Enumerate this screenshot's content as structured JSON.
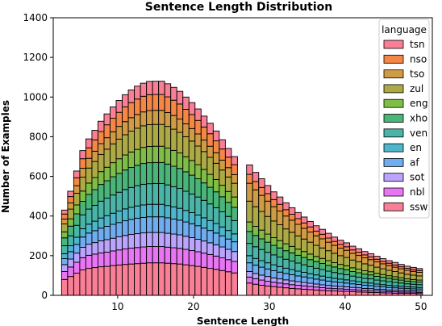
{
  "chart_data": {
    "type": "bar",
    "stacked": true,
    "title": "Sentence Length Distribution",
    "xlabel": "Sentence Length",
    "ylabel": "Number of Examples",
    "xlim": [
      1.5,
      51.5
    ],
    "ylim": [
      0,
      1400
    ],
    "xticks": [
      10,
      20,
      30,
      40,
      50
    ],
    "yticks": [
      0,
      200,
      400,
      600,
      800,
      1000,
      1200,
      1400
    ],
    "legend": {
      "title": "language",
      "placement": "top-right"
    },
    "x": [
      3,
      3.8,
      4.6,
      5.4,
      6.2,
      7.0,
      7.8,
      8.6,
      9.4,
      10.2,
      11.0,
      11.8,
      12.6,
      13.4,
      14.2,
      15.0,
      15.8,
      16.6,
      17.4,
      18.2,
      19.0,
      19.8,
      20.6,
      21.4,
      22.2,
      23.0,
      23.8,
      24.6,
      25.4,
      27.4,
      28.2,
      29.0,
      29.8,
      30.6,
      31.4,
      32.2,
      33.0,
      33.8,
      34.6,
      35.4,
      36.2,
      37.0,
      37.8,
      38.6,
      39.4,
      40.2,
      41.0,
      41.8,
      42.6,
      43.4,
      44.2,
      45.0,
      45.8,
      46.6,
      47.4,
      48.2,
      49.0,
      49.8
    ],
    "bin_width": 0.8,
    "series": [
      {
        "name": "ssw",
        "color": "#f77189",
        "values": [
          80,
          95,
          112,
          128,
          136,
          140,
          144,
          146,
          150,
          153,
          156,
          158,
          160,
          162,
          164,
          164,
          164,
          162,
          160,
          158,
          154,
          150,
          146,
          141,
          136,
          131,
          125,
          119,
          113,
          62,
          56,
          51,
          47,
          44,
          41,
          38,
          35,
          33,
          31,
          29,
          27,
          25,
          23,
          22,
          21,
          20,
          19,
          17,
          16,
          15,
          14,
          13,
          12,
          11,
          11,
          10,
          10,
          9
        ]
      },
      {
        "name": "nbl",
        "color": "#e566f2",
        "values": [
          40,
          48,
          55,
          62,
          66,
          68,
          70,
          72,
          74,
          76,
          78,
          80,
          81,
          82,
          82,
          82,
          82,
          81,
          80,
          79,
          78,
          76,
          74,
          72,
          70,
          67,
          64,
          61,
          58,
          30,
          28,
          26,
          24,
          22,
          21,
          20,
          19,
          18,
          17,
          16,
          15,
          14,
          13,
          12,
          12,
          11,
          10,
          10,
          9,
          9,
          8,
          8,
          7,
          7,
          6,
          6,
          6,
          6
        ]
      },
      {
        "name": "sot",
        "color": "#b39afd",
        "values": [
          35,
          40,
          46,
          52,
          56,
          58,
          61,
          63,
          64,
          66,
          68,
          69,
          70,
          71,
          71,
          71,
          71,
          70,
          69,
          68,
          66,
          65,
          63,
          61,
          59,
          57,
          55,
          52,
          50,
          28,
          26,
          25,
          24,
          22,
          21,
          20,
          19,
          18,
          17,
          16,
          15,
          14,
          14,
          13,
          12,
          12,
          11,
          11,
          10,
          10,
          9,
          9,
          8,
          8,
          8,
          7,
          7,
          7
        ]
      },
      {
        "name": "af",
        "color": "#5fa4ee",
        "values": [
          30,
          37,
          44,
          52,
          56,
          60,
          64,
          67,
          70,
          72,
          74,
          76,
          78,
          78,
          79,
          79,
          79,
          78,
          76,
          74,
          72,
          70,
          68,
          65,
          62,
          59,
          56,
          52,
          49,
          44,
          42,
          40,
          38,
          36,
          34,
          32,
          31,
          29,
          28,
          26,
          25,
          24,
          22,
          21,
          20,
          19,
          18,
          17,
          16,
          15,
          14,
          13,
          13,
          12,
          11,
          11,
          10,
          10
        ]
      },
      {
        "name": "en",
        "color": "#3aaec4",
        "values": [
          25,
          30,
          36,
          42,
          45,
          48,
          51,
          54,
          56,
          58,
          60,
          61,
          62,
          63,
          63,
          63,
          63,
          62,
          61,
          60,
          58,
          56,
          54,
          52,
          50,
          48,
          45,
          43,
          40,
          36,
          34,
          33,
          31,
          30,
          28,
          27,
          26,
          24,
          23,
          22,
          21,
          20,
          19,
          18,
          17,
          16,
          15,
          14,
          13,
          13,
          12,
          11,
          11,
          10,
          10,
          9,
          9,
          8
        ]
      },
      {
        "name": "ven",
        "color": "#36ad9c",
        "values": [
          40,
          50,
          60,
          70,
          76,
          80,
          85,
          88,
          92,
          95,
          98,
          100,
          102,
          104,
          104,
          105,
          105,
          104,
          102,
          100,
          97,
          94,
          91,
          88,
          84,
          80,
          76,
          71,
          67,
          62,
          59,
          56,
          53,
          50,
          48,
          45,
          43,
          41,
          38,
          36,
          34,
          33,
          31,
          29,
          27,
          26,
          24,
          23,
          22,
          21,
          20,
          19,
          18,
          17,
          16,
          15,
          14,
          14
        ]
      },
      {
        "name": "xho",
        "color": "#36ad6a",
        "values": [
          40,
          49,
          58,
          68,
          74,
          79,
          84,
          88,
          92,
          95,
          98,
          101,
          103,
          105,
          106,
          106,
          106,
          105,
          103,
          101,
          98,
          95,
          92,
          88,
          84,
          80,
          76,
          71,
          67,
          60,
          57,
          54,
          51,
          48,
          46,
          43,
          41,
          39,
          37,
          35,
          33,
          31,
          29,
          28,
          26,
          25,
          23,
          22,
          21,
          20,
          19,
          18,
          17,
          16,
          15,
          14,
          13,
          13
        ]
      },
      {
        "name": "eng",
        "color": "#72b632",
        "values": [
          30,
          37,
          45,
          52,
          57,
          61,
          65,
          68,
          71,
          74,
          76,
          78,
          80,
          81,
          82,
          82,
          82,
          81,
          80,
          78,
          76,
          74,
          71,
          68,
          65,
          62,
          58,
          55,
          52,
          48,
          46,
          44,
          41,
          39,
          37,
          35,
          33,
          31,
          30,
          28,
          26,
          25,
          24,
          22,
          21,
          20,
          19,
          18,
          17,
          16,
          15,
          14,
          13,
          13,
          12,
          11,
          11,
          10
        ]
      },
      {
        "name": "zul",
        "color": "#a4a031",
        "values": [
          40,
          49,
          59,
          70,
          76,
          81,
          86,
          91,
          95,
          99,
          102,
          105,
          107,
          109,
          110,
          110,
          110,
          109,
          107,
          104,
          101,
          98,
          94,
          90,
          86,
          82,
          77,
          73,
          69,
          105,
          99,
          94,
          89,
          84,
          80,
          75,
          71,
          67,
          63,
          60,
          56,
          53,
          50,
          47,
          44,
          42,
          39,
          37,
          35,
          33,
          31,
          29,
          27,
          26,
          24,
          23,
          22,
          21
        ]
      },
      {
        "name": "tso",
        "color": "#ca9131",
        "values": [
          25,
          31,
          38,
          45,
          49,
          52,
          55,
          58,
          61,
          64,
          66,
          68,
          69,
          70,
          71,
          71,
          71,
          70,
          69,
          67,
          65,
          63,
          61,
          58,
          56,
          53,
          50,
          47,
          44,
          90,
          85,
          81,
          77,
          72,
          69,
          65,
          61,
          58,
          54,
          51,
          48,
          46,
          43,
          40,
          38,
          36,
          34,
          32,
          30,
          28,
          27,
          25,
          24,
          22,
          21,
          20,
          19,
          18
        ]
      },
      {
        "name": "nso",
        "color": "#f37932",
        "values": [
          25,
          32,
          40,
          48,
          53,
          57,
          61,
          65,
          68,
          71,
          74,
          76,
          78,
          79,
          80,
          80,
          80,
          79,
          77,
          76,
          73,
          71,
          68,
          66,
          63,
          60,
          56,
          53,
          50,
          45,
          42,
          40,
          38,
          36,
          34,
          32,
          30,
          29,
          27,
          26,
          24,
          23,
          21,
          20,
          19,
          18,
          17,
          16,
          15,
          14,
          13,
          12,
          12,
          11,
          10,
          10,
          9,
          9
        ]
      },
      {
        "name": "tsn",
        "color": "#f77189",
        "values": [
          20,
          27,
          34,
          41,
          45,
          48,
          52,
          55,
          57,
          60,
          62,
          64,
          65,
          66,
          67,
          67,
          67,
          66,
          65,
          64,
          62,
          60,
          58,
          55,
          53,
          50,
          47,
          44,
          41,
          48,
          46,
          44,
          41,
          39,
          37,
          35,
          33,
          31,
          30,
          28,
          27,
          25,
          24,
          22,
          21,
          20,
          19,
          18,
          17,
          16,
          15,
          14,
          13,
          13,
          12,
          11,
          11,
          10
        ]
      }
    ]
  }
}
